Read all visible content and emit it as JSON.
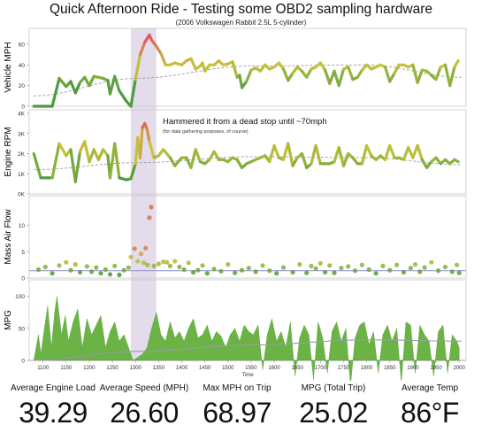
{
  "title": "Quick Afternoon Ride - Testing some OBD2 sampling hardware",
  "subtitle": "(2006 Volkswagen Rabbit 2.5L 5-cylinder)",
  "annotation": {
    "text": "Hammered it from a dead stop until ~70mph",
    "subtext": "(for data gathering purposes, of course)"
  },
  "colors": {
    "low": "#4e9a41",
    "mid": "#c8c43a",
    "high": "#e05a5a",
    "mpg_fill": "#6ab344",
    "highlight": "#e4dcea",
    "trend": "#9a9aa6",
    "maf_line": "#9c9cd4"
  },
  "stats": [
    {
      "label": "Average Engine Load",
      "value": "39.29"
    },
    {
      "label": "Average Speed (MPH)",
      "value": "26.60"
    },
    {
      "label": "Max MPH on Trip",
      "value": "68.97"
    },
    {
      "label": "MPG (Total Trip)",
      "value": "25.02"
    },
    {
      "label": "Average Temp",
      "value": "86°F"
    }
  ],
  "chart_data": [
    {
      "type": "line",
      "ylabel": "Vehicle MPH",
      "yticks": [
        "0",
        "20",
        "40",
        "60"
      ],
      "ylim": [
        0,
        72
      ],
      "highlight_x": [
        1290,
        1345
      ],
      "trend": "polynomial",
      "trend_points": {
        "x": [
          1080,
          1300,
          1550,
          1800,
          2005
        ],
        "y": [
          10,
          27,
          39,
          40,
          28
        ]
      },
      "series": [
        {
          "x": [
            1080,
            1095,
            1110,
            1120,
            1135,
            1150,
            1160,
            1170,
            1180,
            1190,
            1200,
            1210,
            1220,
            1230,
            1240,
            1245,
            1255,
            1265,
            1280,
            1290,
            1300,
            1310,
            1320,
            1330,
            1335,
            1345,
            1355,
            1365,
            1375,
            1385,
            1400,
            1410,
            1420,
            1430,
            1440,
            1445,
            1450,
            1460,
            1470,
            1480,
            1490,
            1500,
            1510,
            1520,
            1525,
            1530,
            1540,
            1550,
            1560,
            1570,
            1580,
            1590,
            1600,
            1610,
            1620,
            1630,
            1640,
            1650,
            1660,
            1670,
            1680,
            1690,
            1700,
            1710,
            1720,
            1730,
            1740,
            1750,
            1760,
            1770,
            1780,
            1790,
            1800,
            1810,
            1820,
            1830,
            1840,
            1850,
            1860,
            1870,
            1880,
            1890,
            1900,
            1910,
            1920,
            1930,
            1940,
            1950,
            1960,
            1970,
            1980,
            1990,
            1998
          ],
          "y": [
            0,
            0,
            0,
            0,
            27,
            19,
            24,
            13,
            23,
            28,
            20,
            29,
            28,
            27,
            25,
            12,
            29,
            15,
            5,
            0,
            26,
            50,
            62,
            69,
            64,
            58,
            51,
            40,
            40,
            42,
            40,
            44,
            46,
            36,
            39,
            42,
            34,
            40,
            40,
            44,
            40,
            41,
            43,
            28,
            30,
            18,
            24,
            35,
            37,
            34,
            40,
            36,
            38,
            42,
            36,
            25,
            32,
            38,
            34,
            28,
            36,
            38,
            42,
            35,
            22,
            34,
            20,
            36,
            38,
            26,
            28,
            35,
            40,
            36,
            38,
            40,
            38,
            24,
            32,
            40,
            40,
            38,
            40,
            23,
            35,
            34,
            30,
            26,
            38,
            40,
            20,
            38,
            44
          ]
        }
      ]
    },
    {
      "type": "line",
      "ylabel": "Engine RPM",
      "yticks": [
        "0K",
        "1K",
        "2K",
        "3K",
        "4K"
      ],
      "ylim": [
        0,
        4000
      ],
      "trend": "polynomial",
      "trend_points": {
        "x": [
          1080,
          1300,
          1550,
          1800,
          2005
        ],
        "y": [
          1200,
          1550,
          1850,
          1800,
          1450
        ]
      },
      "series": [
        {
          "x": [
            1080,
            1095,
            1110,
            1120,
            1135,
            1150,
            1160,
            1170,
            1180,
            1190,
            1200,
            1210,
            1220,
            1230,
            1240,
            1245,
            1255,
            1265,
            1280,
            1290,
            1300,
            1305,
            1310,
            1315,
            1320,
            1325,
            1330,
            1340,
            1350,
            1360,
            1375,
            1385,
            1400,
            1410,
            1420,
            1430,
            1440,
            1450,
            1460,
            1470,
            1480,
            1490,
            1500,
            1510,
            1520,
            1530,
            1540,
            1550,
            1560,
            1570,
            1580,
            1590,
            1600,
            1610,
            1620,
            1630,
            1640,
            1650,
            1660,
            1670,
            1680,
            1690,
            1700,
            1710,
            1720,
            1730,
            1740,
            1750,
            1760,
            1770,
            1780,
            1790,
            1800,
            1810,
            1820,
            1830,
            1840,
            1850,
            1860,
            1870,
            1880,
            1890,
            1900,
            1910,
            1920,
            1930,
            1940,
            1950,
            1960,
            1970,
            1980,
            1990,
            1998
          ],
          "y": [
            2000,
            800,
            800,
            800,
            2500,
            1900,
            2200,
            600,
            2100,
            2600,
            1600,
            2200,
            1700,
            2200,
            1900,
            800,
            2500,
            800,
            700,
            750,
            1500,
            2800,
            1800,
            3300,
            3500,
            3200,
            2600,
            1800,
            1900,
            2200,
            1800,
            1400,
            1800,
            1800,
            1300,
            2200,
            1600,
            1500,
            1700,
            2100,
            1700,
            1700,
            1600,
            1800,
            1700,
            1300,
            1500,
            1600,
            1700,
            1800,
            1900,
            1600,
            2400,
            1800,
            1700,
            2500,
            1400,
            1800,
            2000,
            1300,
            1500,
            2400,
            1500,
            1500,
            1500,
            1600,
            2300,
            1400,
            2000,
            1800,
            1500,
            1500,
            2400,
            1900,
            1700,
            1900,
            1700,
            2400,
            1800,
            1800,
            1700,
            2300,
            1800,
            2400,
            1700,
            1300,
            1600,
            1800,
            1500,
            1700,
            1500,
            1700,
            1600
          ]
        }
      ]
    },
    {
      "type": "scatter",
      "ylabel": "Mass Air Flow",
      "yticks": [
        "0",
        "5",
        "10"
      ],
      "ylim": [
        0,
        15
      ],
      "ref_line": 1.4,
      "series": [
        {
          "x": [
            1090,
            1105,
            1120,
            1135,
            1150,
            1160,
            1170,
            1180,
            1195,
            1205,
            1215,
            1225,
            1235,
            1245,
            1255,
            1265,
            1275,
            1285,
            1290,
            1298,
            1305,
            1312,
            1318,
            1322,
            1326,
            1330,
            1334,
            1340,
            1350,
            1360,
            1368,
            1375,
            1385,
            1395,
            1405,
            1415,
            1425,
            1435,
            1445,
            1455,
            1470,
            1485,
            1500,
            1515,
            1530,
            1545,
            1560,
            1575,
            1590,
            1605,
            1620,
            1640,
            1655,
            1670,
            1680,
            1690,
            1700,
            1710,
            1720,
            1730,
            1745,
            1760,
            1775,
            1790,
            1805,
            1820,
            1835,
            1850,
            1865,
            1880,
            1895,
            1905,
            1915,
            1925,
            1940,
            1955,
            1970,
            1985,
            1995,
            2000
          ],
          "y": [
            1.6,
            2.1,
            0.9,
            2.4,
            3.0,
            1.5,
            2.6,
            1.1,
            2.2,
            1.2,
            2.0,
            0.9,
            1.6,
            0.7,
            2.3,
            0.6,
            1.5,
            2.0,
            4.0,
            5.6,
            3.2,
            4.6,
            2.9,
            5.7,
            2.5,
            11.5,
            13.5,
            2.3,
            2.7,
            3.1,
            3.0,
            2.3,
            3.2,
            2.1,
            1.6,
            2.9,
            1.1,
            1.5,
            2.4,
            0.9,
            1.7,
            1.3,
            2.6,
            1.0,
            1.5,
            1.9,
            1.2,
            2.4,
            1.4,
            0.9,
            2.0,
            1.1,
            2.6,
            1.0,
            2.3,
            1.8,
            2.8,
            1.1,
            2.4,
            1.0,
            1.9,
            2.2,
            1.4,
            2.5,
            1.6,
            0.9,
            2.3,
            1.5,
            2.5,
            1.1,
            1.9,
            2.6,
            1.2,
            2.0,
            3.0,
            1.4,
            2.1,
            1.2,
            2.5,
            1.0
          ]
        }
      ]
    },
    {
      "type": "area",
      "ylabel": "MPG",
      "xlabel": "Time",
      "yticks": [
        "0",
        "50",
        "100"
      ],
      "ylim": [
        0,
        120
      ],
      "xticks": [
        "1100",
        "1150",
        "1200",
        "1250",
        "1300",
        "1350",
        "1400",
        "1450",
        "1500",
        "1550",
        "1600",
        "1650",
        "1700",
        "1750",
        "1800",
        "1850",
        "1900",
        "1950",
        "2000"
      ],
      "xlim": [
        1070,
        2015
      ],
      "trend": "polynomial",
      "trend_points": {
        "x": [
          1080,
          1300,
          1550,
          1800,
          2005
        ],
        "y": [
          0,
          14,
          24,
          32,
          30
        ]
      },
      "series": [
        {
          "x": [
            1080,
            1090,
            1095,
            1105,
            1110,
            1118,
            1125,
            1130,
            1140,
            1148,
            1155,
            1165,
            1175,
            1185,
            1195,
            1205,
            1215,
            1225,
            1235,
            1245,
            1255,
            1265,
            1275,
            1285,
            1295,
            1305,
            1315,
            1325,
            1335,
            1345,
            1355,
            1365,
            1375,
            1385,
            1395,
            1405,
            1415,
            1425,
            1435,
            1445,
            1455,
            1465,
            1475,
            1485,
            1495,
            1505,
            1515,
            1525,
            1535,
            1545,
            1555,
            1565,
            1575,
            1585,
            1595,
            1605,
            1615,
            1625,
            1635,
            1645,
            1655,
            1665,
            1675,
            1685,
            1695,
            1705,
            1715,
            1725,
            1735,
            1745,
            1755,
            1765,
            1775,
            1785,
            1795,
            1805,
            1815,
            1825,
            1835,
            1845,
            1855,
            1865,
            1875,
            1885,
            1895,
            1905,
            1915,
            1925,
            1935,
            1945,
            1955,
            1965,
            1975,
            1985,
            1995,
            2000
          ],
          "y": [
            0,
            40,
            10,
            60,
            85,
            20,
            75,
            100,
            40,
            70,
            30,
            60,
            80,
            20,
            65,
            40,
            55,
            70,
            20,
            45,
            60,
            30,
            40,
            20,
            0,
            5,
            10,
            20,
            50,
            75,
            40,
            30,
            60,
            35,
            45,
            30,
            50,
            65,
            35,
            40,
            55,
            30,
            45,
            38,
            20,
            40,
            50,
            30,
            55,
            45,
            40,
            55,
            -15,
            40,
            65,
            30,
            45,
            20,
            60,
            -25,
            35,
            55,
            40,
            -30,
            60,
            35,
            -20,
            45,
            60,
            30,
            50,
            -40,
            35,
            55,
            60,
            25,
            45,
            -20,
            40,
            55,
            30,
            50,
            -35,
            60,
            55,
            -20,
            55,
            40,
            30,
            -25,
            45,
            55,
            -20,
            40,
            30,
            20
          ]
        }
      ]
    }
  ]
}
